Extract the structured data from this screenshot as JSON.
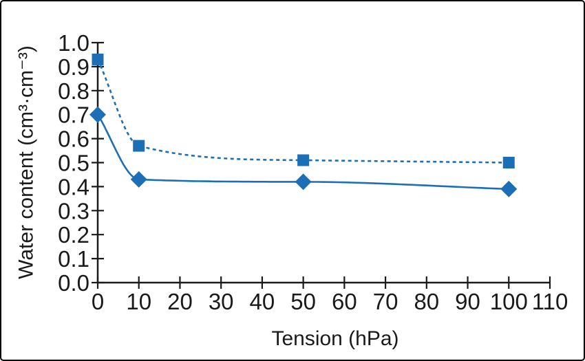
{
  "frame": {
    "background": "#ffffff",
    "border_color": "#000000"
  },
  "chart_data": {
    "type": "line",
    "title": "",
    "xlabel": "Tension (hPa)",
    "ylabel": "Water content (cm³·cm⁻³)",
    "xlim": [
      0,
      110
    ],
    "ylim": [
      0.0,
      1.0
    ],
    "xticks": [
      0,
      10,
      20,
      30,
      40,
      50,
      60,
      70,
      80,
      90,
      100,
      110
    ],
    "xtick_labels": [
      "0",
      "10",
      "20",
      "30",
      "40",
      "50",
      "60",
      "70",
      "80",
      "90",
      "100",
      "110"
    ],
    "yticks": [
      0.0,
      0.1,
      0.2,
      0.3,
      0.4,
      0.5,
      0.6,
      0.7,
      0.8,
      0.9,
      1.0
    ],
    "ytick_labels": [
      "0.0",
      "0.1",
      "0.2",
      "0.3",
      "0.4",
      "0.5",
      "0.6",
      "0.7",
      "0.8",
      "0.9",
      "1.0"
    ],
    "grid": false,
    "legend": "none",
    "series_color": "#1d6fb5",
    "axis_color": "#1a1a1a",
    "series": [
      {
        "name": "upper-curve-squares",
        "marker": "square",
        "line_style": "dashed",
        "x": [
          0,
          10,
          50,
          100
        ],
        "y": [
          0.93,
          0.57,
          0.51,
          0.5
        ]
      },
      {
        "name": "lower-curve-diamonds",
        "marker": "diamond",
        "line_style": "solid",
        "x": [
          0,
          10,
          50,
          100
        ],
        "y": [
          0.7,
          0.43,
          0.42,
          0.39
        ]
      }
    ]
  }
}
